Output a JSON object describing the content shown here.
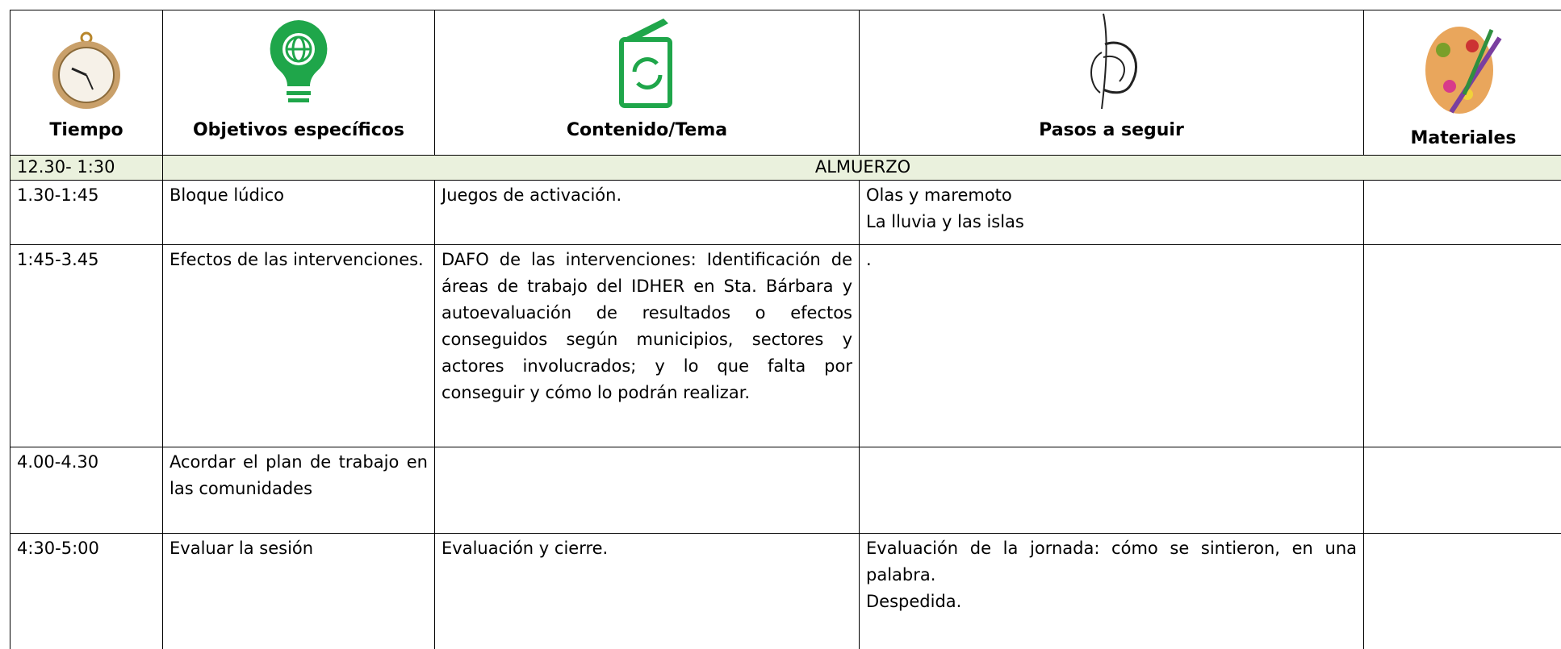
{
  "header": {
    "columns": [
      "Tiempo",
      "Objetivos específicos",
      "Contenido/Tema",
      "Pasos a seguir",
      "Materiales"
    ]
  },
  "table": {
    "rows": [
      [
        "12.30- 1:30",
        "ALMUERZO"
      ],
      [
        "1.30-1:45",
        "Bloque lúdico",
        "Juegos de activación.",
        [
          "Olas y maremoto",
          "La lluvia y las islas"
        ],
        null
      ],
      [
        "1:45-3.45",
        "Efectos de las intervenciones.",
        "DAFO de las intervenciones: Identificación de áreas de trabajo del IDHER en Sta. Bárbara y autoevaluación de resultados o efectos conseguidos según municipios, sectores y actores involucrados; y lo que falta por conseguir y cómo lo podrán realizar.",
        ".",
        null
      ],
      [
        "4.00-4.30",
        "Acordar el plan de trabajo en las comunidades",
        null,
        null,
        null
      ],
      [
        "4:30-5:00",
        "Evaluar la sesión",
        "Evaluación y cierre.",
        [
          "Evaluación de la jornada: cómo se sintieron, en una palabra.",
          "Despedida."
        ],
        null
      ]
    ]
  }
}
